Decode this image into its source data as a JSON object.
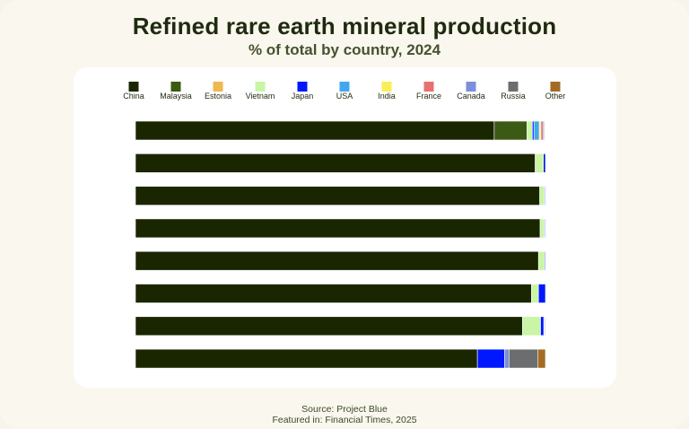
{
  "header": {
    "title": "Refined rare earth mineral production",
    "subtitle": "% of total by country, 2024"
  },
  "footer": {
    "source": "Source: Project Blue",
    "featured": "Featured in: Financial Times, 2025"
  },
  "chart_data": {
    "type": "bar",
    "orientation": "horizontal",
    "stacked": true,
    "xlim": [
      0,
      100
    ],
    "legend_position": "top",
    "grid": false,
    "categories": [
      "",
      "",
      "",
      "",
      "",
      "",
      "",
      ""
    ],
    "series": [
      {
        "name": "China",
        "color": "#1a2600",
        "values": [
          87.5,
          97.5,
          98.6,
          98.7,
          98.3,
          96.6,
          94.4,
          83.4
        ]
      },
      {
        "name": "Malaysia",
        "color": "#3b5a14",
        "values": [
          8.0,
          0,
          0,
          0,
          0,
          0,
          0,
          0
        ]
      },
      {
        "name": "Estonia",
        "color": "#efb84f",
        "values": [
          0,
          0,
          0,
          0,
          0,
          0,
          0,
          0
        ]
      },
      {
        "name": "Vietnam",
        "color": "#c9f5a4",
        "values": [
          1.3,
          2.0,
          1.1,
          1.0,
          1.5,
          1.7,
          4.4,
          0
        ]
      },
      {
        "name": "Japan",
        "color": "#0017ff",
        "values": [
          0.4,
          0.5,
          0.2,
          0.2,
          0.2,
          1.7,
          0.8,
          6.6
        ]
      },
      {
        "name": "USA",
        "color": "#43a7f0",
        "values": [
          1.3,
          0,
          0.1,
          0.1,
          0,
          0,
          0,
          0
        ]
      },
      {
        "name": "India",
        "color": "#f8ee55",
        "values": [
          0.4,
          0,
          0,
          0,
          0,
          0,
          0.2,
          0
        ]
      },
      {
        "name": "France",
        "color": "#e8706e",
        "values": [
          0.5,
          0,
          0,
          0,
          0,
          0,
          0,
          0
        ]
      },
      {
        "name": "Canada",
        "color": "#7d8edb",
        "values": [
          0.3,
          0,
          0,
          0,
          0,
          0,
          0.2,
          1.1
        ]
      },
      {
        "name": "Russia",
        "color": "#6b6d6f",
        "values": [
          0,
          0,
          0,
          0,
          0,
          0,
          0,
          7.0
        ]
      },
      {
        "name": "Other",
        "color": "#a36b25",
        "values": [
          0,
          0,
          0,
          0,
          0,
          0,
          0,
          1.9
        ]
      }
    ]
  }
}
